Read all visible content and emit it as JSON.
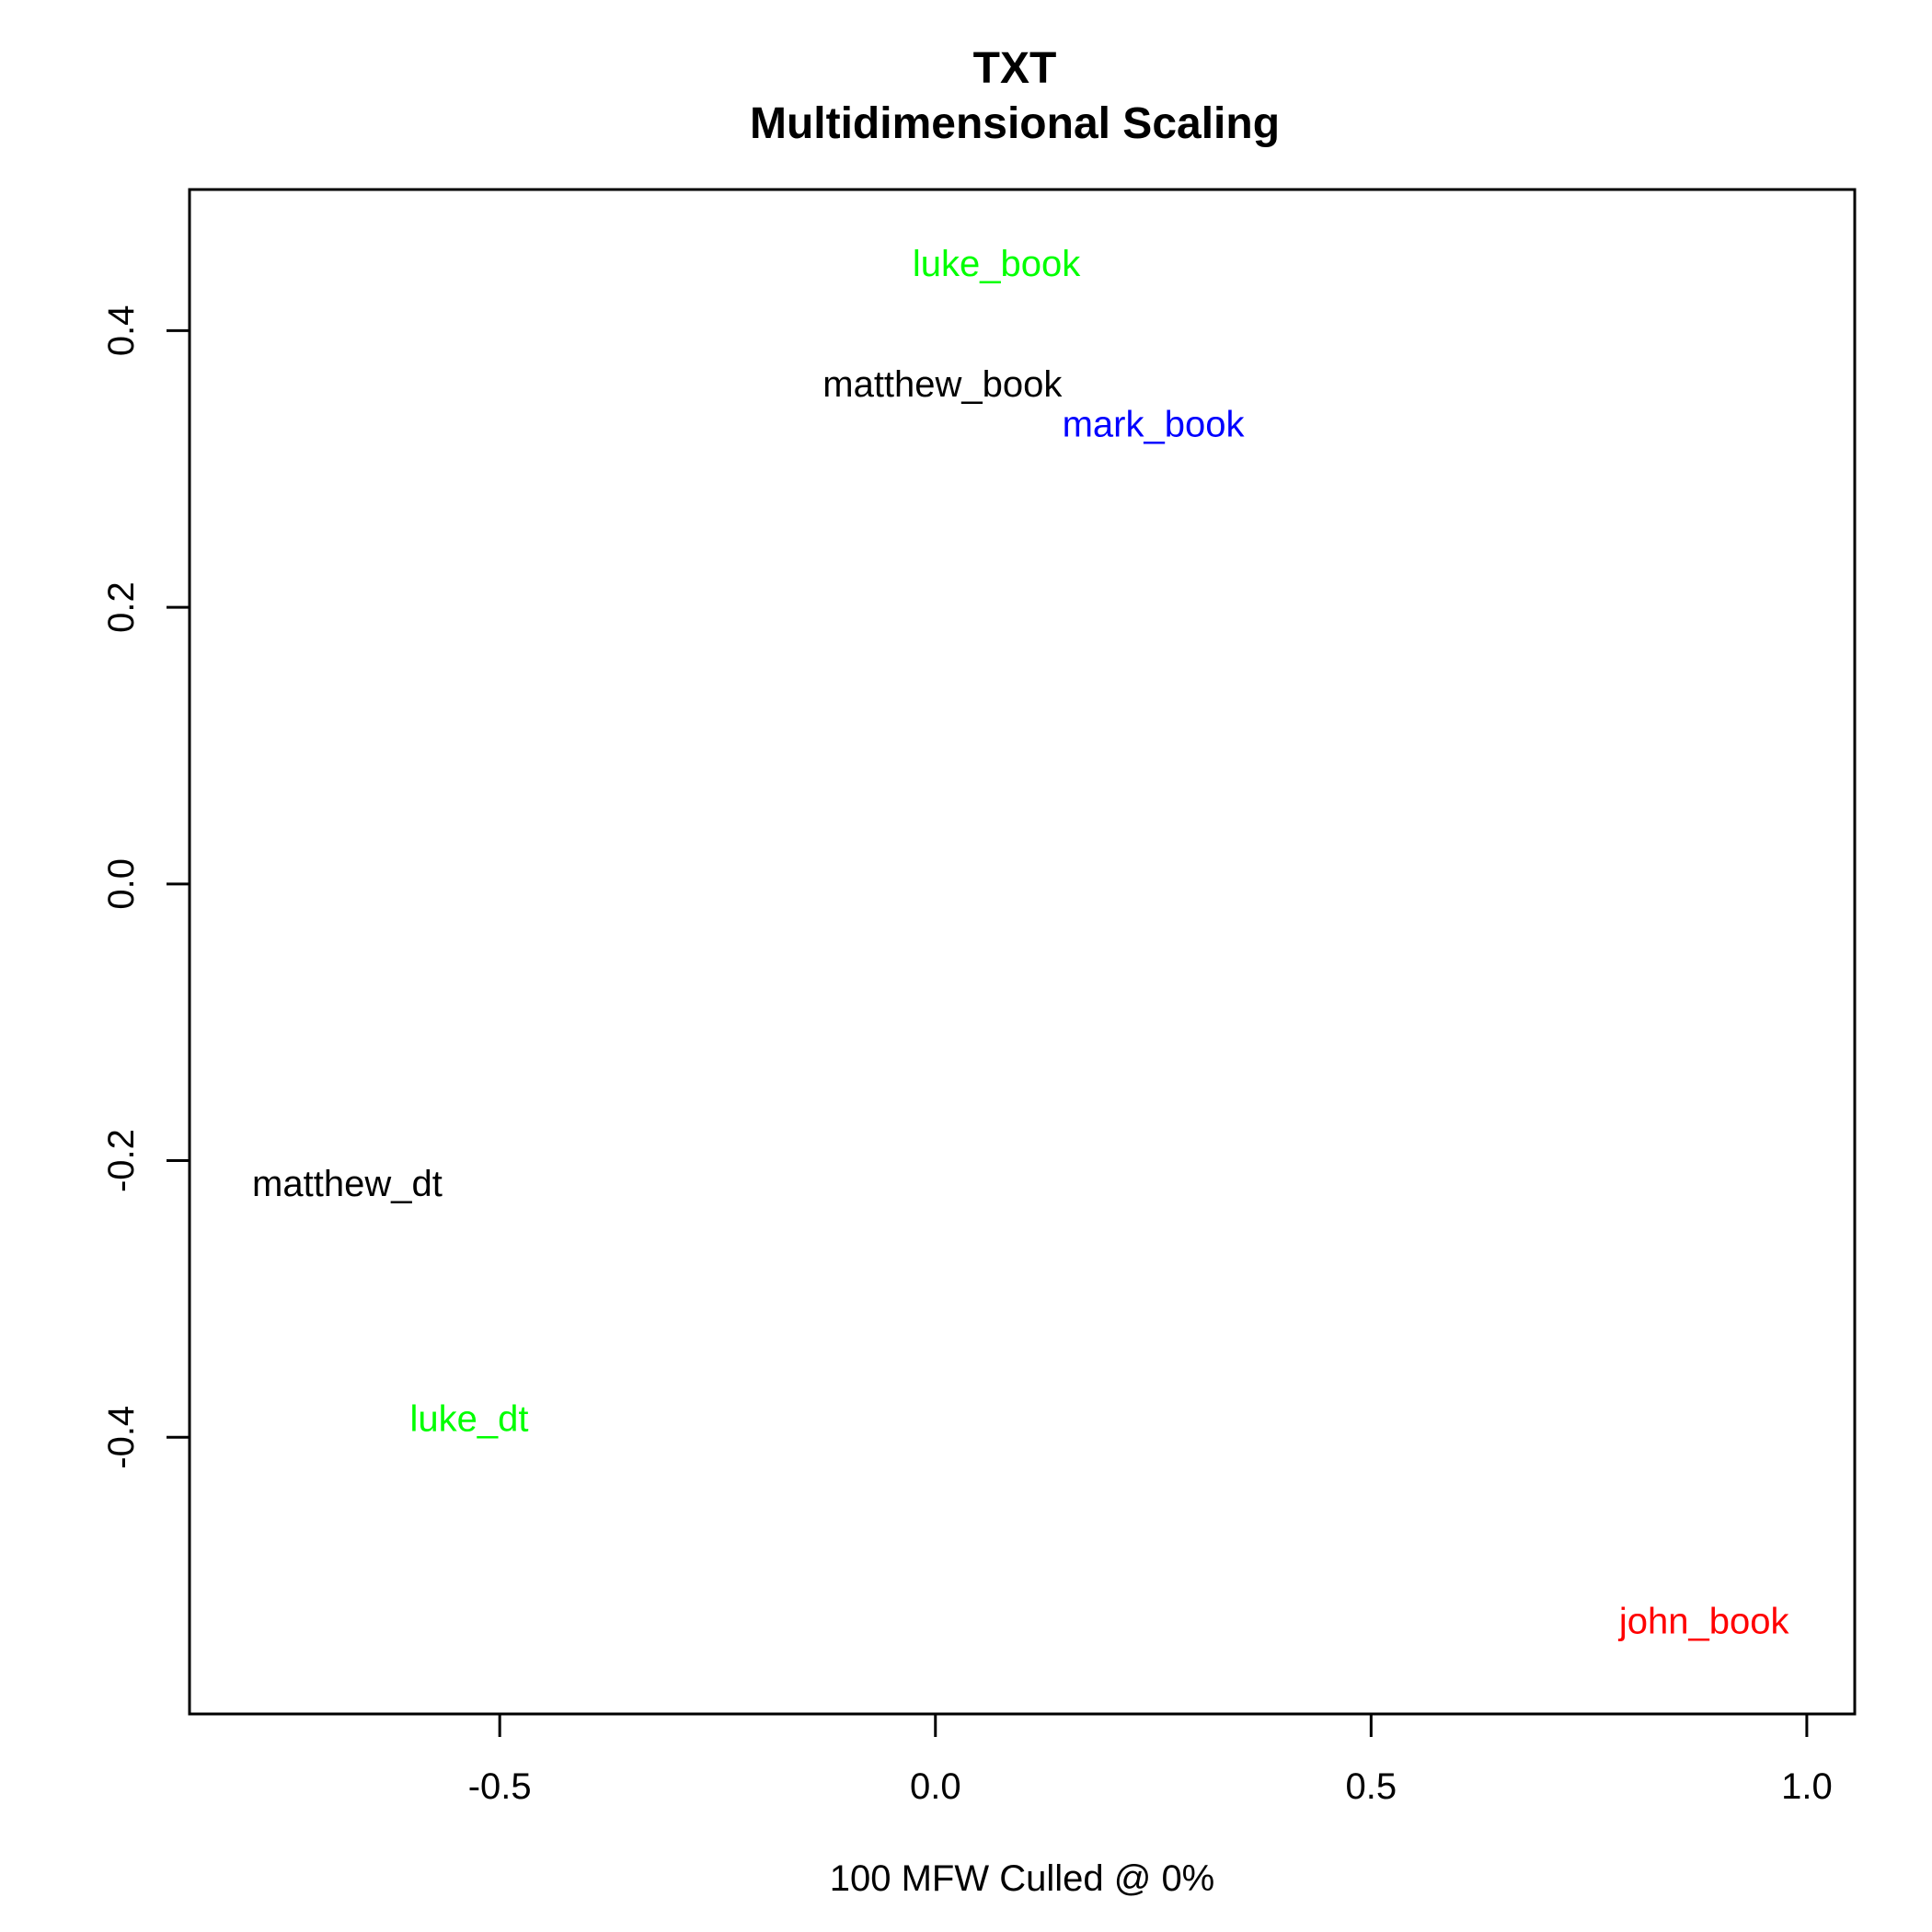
{
  "chart_data": {
    "type": "scatter",
    "title": "TXT",
    "subtitle": "Multidimensional Scaling",
    "xlabel": "100 MFW  Culled @ 0%",
    "ylabel": "",
    "xlim": [
      -0.856,
      1.055
    ],
    "ylim": [
      -0.6,
      0.502
    ],
    "x_ticks": [
      -0.5,
      0.0,
      0.5,
      1.0
    ],
    "x_tick_labels": [
      "-0.5",
      "0.0",
      "0.5",
      "1.0"
    ],
    "y_ticks": [
      -0.4,
      -0.2,
      0.0,
      0.2,
      0.4
    ],
    "y_tick_labels": [
      "-0.4",
      "-0.2",
      "0.0",
      "0.2",
      "0.4"
    ],
    "grid": false,
    "legend": "none",
    "points": [
      {
        "label": "luke_book",
        "x": 0.07,
        "y": 0.448,
        "color": "#00ff00"
      },
      {
        "label": "matthew_book",
        "x": 0.008,
        "y": 0.361,
        "color": "#000000"
      },
      {
        "label": "mark_book",
        "x": 0.25,
        "y": 0.332,
        "color": "#0000ff"
      },
      {
        "label": "matthew_dt",
        "x": -0.675,
        "y": -0.217,
        "color": "#000000"
      },
      {
        "label": "luke_dt",
        "x": -0.535,
        "y": -0.387,
        "color": "#00ff00"
      },
      {
        "label": "john_book",
        "x": 0.882,
        "y": -0.533,
        "color": "#ff0000"
      }
    ]
  }
}
